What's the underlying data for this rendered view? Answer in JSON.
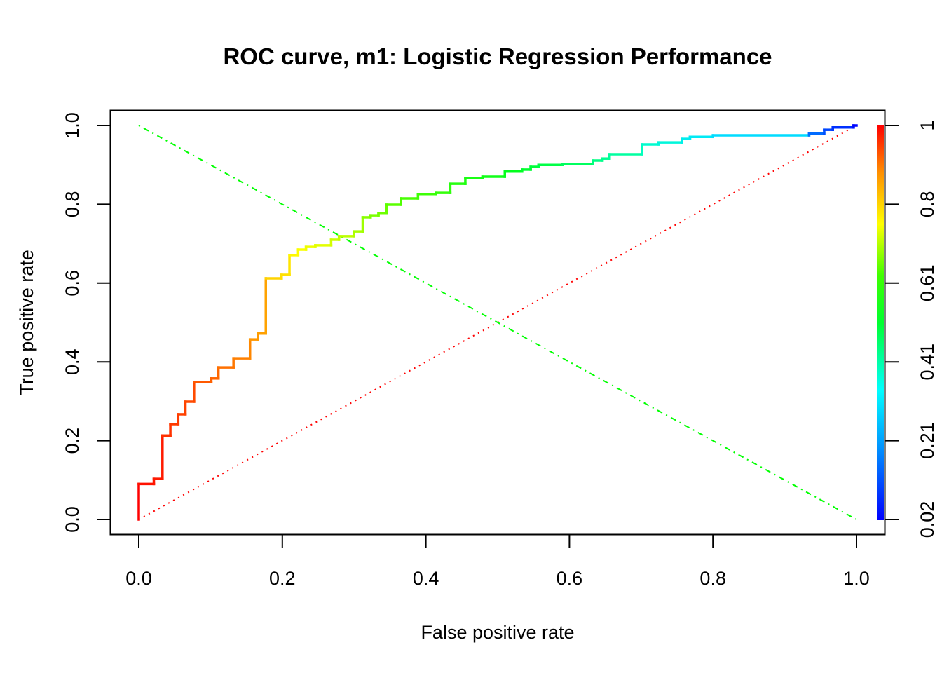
{
  "chart_data": {
    "type": "line",
    "title": "ROC curve, m1: Logistic Regression Performance",
    "xlabel": "False positive rate",
    "ylabel": "True positive rate",
    "xlim": [
      0,
      1
    ],
    "ylim": [
      0,
      1
    ],
    "xticks": [
      "0.0",
      "0.2",
      "0.4",
      "0.6",
      "0.8",
      "1.0"
    ],
    "xtick_values": [
      0,
      0.2,
      0.4,
      0.6,
      0.8,
      1.0
    ],
    "yticks": [
      "0.0",
      "0.2",
      "0.4",
      "0.6",
      "0.8",
      "1.0"
    ],
    "ytick_values": [
      0,
      0.2,
      0.4,
      0.6,
      0.8,
      1.0
    ],
    "grid": false,
    "colorbar": {
      "label_ticks": [
        "0.02",
        "0.21",
        "0.41",
        "0.61",
        "0.8",
        "1"
      ],
      "position": "right",
      "colormap": "rainbow (blue → red)",
      "range": [
        0.02,
        1
      ]
    },
    "series": [
      {
        "name": "ROC curve",
        "style": "step, colored by cutoff",
        "x": [
          0,
          0,
          0.021,
          0.021,
          0.033,
          0.033,
          0.044,
          0.044,
          0.055,
          0.055,
          0.065,
          0.065,
          0.077,
          0.077,
          0.101,
          0.101,
          0.111,
          0.111,
          0.132,
          0.132,
          0.155,
          0.155,
          0.166,
          0.166,
          0.177,
          0.177,
          0.199,
          0.199,
          0.21,
          0.21,
          0.222,
          0.222,
          0.233,
          0.233,
          0.246,
          0.246,
          0.268,
          0.268,
          0.279,
          0.279,
          0.3,
          0.3,
          0.312,
          0.312,
          0.323,
          0.323,
          0.334,
          0.334,
          0.345,
          0.345,
          0.365,
          0.365,
          0.389,
          0.389,
          0.414,
          0.414,
          0.434,
          0.434,
          0.455,
          0.455,
          0.479,
          0.479,
          0.51,
          0.51,
          0.534,
          0.534,
          0.546,
          0.546,
          0.557,
          0.557,
          0.59,
          0.59,
          0.633,
          0.633,
          0.646,
          0.646,
          0.656,
          0.656,
          0.701,
          0.701,
          0.724,
          0.724,
          0.757,
          0.757,
          0.768,
          0.768,
          0.8,
          0.8,
          0.934,
          0.934,
          0.955,
          0.955,
          0.967,
          0.967,
          0.996,
          0.996,
          1.0
        ],
        "y": [
          0,
          0.09,
          0.09,
          0.103,
          0.103,
          0.213,
          0.213,
          0.242,
          0.242,
          0.267,
          0.267,
          0.299,
          0.299,
          0.349,
          0.349,
          0.358,
          0.358,
          0.386,
          0.386,
          0.409,
          0.409,
          0.457,
          0.457,
          0.472,
          0.472,
          0.612,
          0.612,
          0.621,
          0.621,
          0.671,
          0.671,
          0.685,
          0.685,
          0.692,
          0.692,
          0.696,
          0.696,
          0.71,
          0.71,
          0.719,
          0.719,
          0.731,
          0.731,
          0.767,
          0.767,
          0.772,
          0.772,
          0.778,
          0.778,
          0.799,
          0.799,
          0.815,
          0.815,
          0.826,
          0.826,
          0.829,
          0.829,
          0.852,
          0.852,
          0.867,
          0.867,
          0.87,
          0.87,
          0.883,
          0.883,
          0.888,
          0.888,
          0.895,
          0.895,
          0.9,
          0.9,
          0.902,
          0.902,
          0.911,
          0.911,
          0.916,
          0.916,
          0.927,
          0.927,
          0.952,
          0.952,
          0.957,
          0.957,
          0.966,
          0.966,
          0.971,
          0.971,
          0.975,
          0.975,
          0.98,
          0.98,
          0.989,
          0.989,
          0.995,
          0.995,
          1.0,
          1.0
        ]
      },
      {
        "name": "chance diagonal",
        "style": "dotted",
        "color": "#ff0000",
        "x": [
          0,
          1
        ],
        "y": [
          0,
          1
        ]
      },
      {
        "name": "anti-diagonal",
        "style": "dot-dash",
        "color": "#00ff00",
        "x": [
          0,
          1
        ],
        "y": [
          1,
          0
        ]
      }
    ]
  }
}
